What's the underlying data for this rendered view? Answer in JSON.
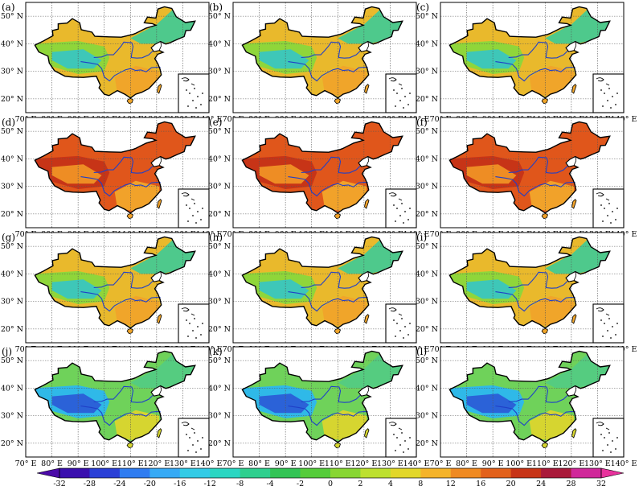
{
  "panels": [
    {
      "label": "(a)",
      "field": "warm"
    },
    {
      "label": "(b)",
      "field": "warm"
    },
    {
      "label": "(c)",
      "field": "warm"
    },
    {
      "label": "(d)",
      "field": "hot"
    },
    {
      "label": "(e)",
      "field": "hot"
    },
    {
      "label": "(f)",
      "field": "hot"
    },
    {
      "label": "(g)",
      "field": "warm"
    },
    {
      "label": "(h)",
      "field": "warm"
    },
    {
      "label": "(i)",
      "field": "warm"
    },
    {
      "label": "(j)",
      "field": "cold"
    },
    {
      "label": "(k)",
      "field": "cold"
    },
    {
      "label": "(l)",
      "field": "cold"
    }
  ],
  "axes": {
    "lon_ticks": [
      "70° E",
      "80° E",
      "90° E",
      "100° E",
      "110° E",
      "120° E",
      "130° E",
      "140° E"
    ],
    "lat_ticks": [
      "50° N",
      "40° N",
      "30° N",
      "20° N"
    ]
  },
  "colorbar": {
    "tick_labels": [
      "-32",
      "-28",
      "-24",
      "-20",
      "-16",
      "-12",
      "-8",
      "-4",
      "-2",
      "0",
      "2",
      "4",
      "8",
      "12",
      "16",
      "20",
      "24",
      "28",
      "32"
    ],
    "colors": [
      "#3a0fae",
      "#2a3fd6",
      "#2f7cf0",
      "#37aaf5",
      "#33cbe6",
      "#2bd6c2",
      "#2fcf8e",
      "#33c455",
      "#55cc3a",
      "#88d632",
      "#bde02f",
      "#e2d72a",
      "#f4b32a",
      "#ef8a22",
      "#e2611b",
      "#c73417",
      "#a91a3a",
      "#d0289a"
    ]
  }
}
